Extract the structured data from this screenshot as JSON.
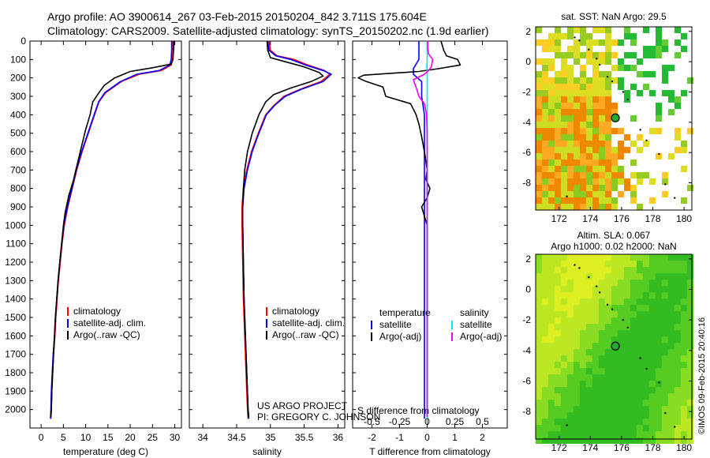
{
  "header": {
    "line1": "Argo profile: AO 3900614_267 03-Feb-2015 20150204_842 3.711S 175.604E",
    "line2": "Climatology: CARS2009. Satellite-adjusted climatology: synTS_20150202.nc (1.9d earlier)"
  },
  "credit": {
    "line1": "US ARGO PROJECT",
    "line2": "PI: GREGORY C. JOHNSON"
  },
  "side_stamp": "©IMOS 09-Feb-2015 20:40:16",
  "colors": {
    "climatology": "#ff0000",
    "satellite": "#0000ff",
    "argo": "#000000",
    "sal_sat": "#00e5ee",
    "sal_argo": "#ee00ee"
  },
  "chart_data": [
    {
      "type": "line",
      "xlabel": "temperature (deg C)",
      "ylabel": "",
      "xlim": [
        -2.5,
        31.5
      ],
      "ylim": [
        2100,
        0
      ],
      "xticks": [
        0,
        5,
        10,
        15,
        20,
        25,
        30
      ],
      "yticks": [
        0,
        100,
        200,
        300,
        400,
        500,
        600,
        700,
        800,
        900,
        1000,
        1100,
        1200,
        1300,
        1400,
        1500,
        1600,
        1700,
        1800,
        1900,
        2000
      ],
      "legend": [
        "climatology",
        "satellite-adj. clim.",
        "Argo(..raw -QC)"
      ],
      "series": [
        {
          "name": "climatology",
          "points": [
            [
              29.6,
              0
            ],
            [
              29.6,
              50
            ],
            [
              29.5,
              100
            ],
            [
              29.2,
              130
            ],
            [
              27,
              160
            ],
            [
              22,
              180
            ],
            [
              18,
              220
            ],
            [
              14.5,
              280
            ],
            [
              13,
              330
            ],
            [
              12,
              400
            ],
            [
              10.6,
              500
            ],
            [
              9.2,
              600
            ],
            [
              8,
              700
            ],
            [
              7,
              800
            ],
            [
              6,
              900
            ],
            [
              5.2,
              1000
            ],
            [
              4.7,
              1100
            ],
            [
              4.3,
              1200
            ],
            [
              3.9,
              1300
            ],
            [
              3.6,
              1400
            ],
            [
              3.3,
              1500
            ],
            [
              3.1,
              1600
            ],
            [
              2.8,
              1700
            ],
            [
              2.6,
              1800
            ],
            [
              2.4,
              1900
            ],
            [
              2.3,
              2000
            ],
            [
              2.2,
              2050
            ]
          ]
        },
        {
          "name": "satellite-adj. clim.",
          "points": [
            [
              29.3,
              0
            ],
            [
              29.3,
              50
            ],
            [
              29.2,
              100
            ],
            [
              28.9,
              130
            ],
            [
              26.5,
              160
            ],
            [
              21.5,
              180
            ],
            [
              17.8,
              220
            ],
            [
              14.3,
              280
            ],
            [
              12.9,
              330
            ],
            [
              11.9,
              400
            ],
            [
              10.5,
              500
            ],
            [
              9.1,
              600
            ],
            [
              7.9,
              700
            ],
            [
              6.9,
              800
            ],
            [
              5.9,
              900
            ],
            [
              5.1,
              1000
            ],
            [
              4.6,
              1100
            ],
            [
              4.2,
              1200
            ],
            [
              3.8,
              1300
            ],
            [
              3.5,
              1400
            ],
            [
              3.2,
              1500
            ],
            [
              3,
              1600
            ],
            [
              2.7,
              1700
            ],
            [
              2.5,
              1800
            ],
            [
              2.3,
              1900
            ],
            [
              2.2,
              2000
            ],
            [
              2.1,
              2050
            ]
          ]
        },
        {
          "name": "Argo(..raw -QC)",
          "points": [
            [
              29.8,
              0
            ],
            [
              29.8,
              30
            ],
            [
              29.7,
              60
            ],
            [
              29.6,
              100
            ],
            [
              29.2,
              125
            ],
            [
              25,
              145
            ],
            [
              20,
              165
            ],
            [
              16.5,
              200
            ],
            [
              14.2,
              240
            ],
            [
              13,
              280
            ],
            [
              11.6,
              330
            ],
            [
              11,
              400
            ],
            [
              10,
              480
            ],
            [
              9,
              580
            ],
            [
              8,
              680
            ],
            [
              7.2,
              760
            ],
            [
              6.2,
              840
            ],
            [
              5.4,
              930
            ],
            [
              5,
              1000
            ],
            [
              4.6,
              1100
            ],
            [
              4.2,
              1200
            ],
            [
              3.8,
              1300
            ],
            [
              3.5,
              1400
            ],
            [
              3.2,
              1500
            ],
            [
              3,
              1600
            ],
            [
              2.8,
              1700
            ],
            [
              2.6,
              1800
            ],
            [
              2.4,
              1900
            ],
            [
              2.3,
              2000
            ],
            [
              2.2,
              2040
            ]
          ]
        }
      ]
    },
    {
      "type": "line",
      "xlabel": "salinity",
      "ylabel": "",
      "xlim": [
        33.8,
        36.1
      ],
      "ylim": [
        2100,
        0
      ],
      "xticks": [
        34,
        34.5,
        35,
        35.5,
        36
      ],
      "yticks": [],
      "legend": [
        "climatology",
        "satellite-adj. clim.",
        "Argo(..raw -QC)"
      ],
      "series": [
        {
          "name": "climatology",
          "points": [
            [
              34.98,
              0
            ],
            [
              35,
              50
            ],
            [
              35.1,
              80
            ],
            [
              35.35,
              100
            ],
            [
              35.55,
              130
            ],
            [
              35.8,
              160
            ],
            [
              35.88,
              180
            ],
            [
              35.75,
              220
            ],
            [
              35.45,
              260
            ],
            [
              35.2,
              300
            ],
            [
              35.05,
              350
            ],
            [
              34.93,
              400
            ],
            [
              34.82,
              500
            ],
            [
              34.72,
              600
            ],
            [
              34.65,
              700
            ],
            [
              34.6,
              800
            ],
            [
              34.58,
              900
            ],
            [
              34.58,
              1000
            ],
            [
              34.59,
              1200
            ],
            [
              34.6,
              1400
            ],
            [
              34.62,
              1600
            ],
            [
              34.64,
              1800
            ],
            [
              34.66,
              2000
            ],
            [
              34.67,
              2050
            ]
          ]
        },
        {
          "name": "satellite-adj. clim.",
          "points": [
            [
              34.96,
              0
            ],
            [
              34.98,
              50
            ],
            [
              35.08,
              80
            ],
            [
              35.3,
              100
            ],
            [
              35.52,
              130
            ],
            [
              35.78,
              160
            ],
            [
              35.9,
              180
            ],
            [
              35.78,
              220
            ],
            [
              35.47,
              260
            ],
            [
              35.22,
              300
            ],
            [
              35.06,
              350
            ],
            [
              34.94,
              400
            ],
            [
              34.83,
              500
            ],
            [
              34.73,
              600
            ],
            [
              34.66,
              700
            ],
            [
              34.61,
              800
            ],
            [
              34.59,
              900
            ],
            [
              34.59,
              1000
            ],
            [
              34.6,
              1200
            ],
            [
              34.61,
              1400
            ],
            [
              34.63,
              1600
            ],
            [
              34.65,
              1800
            ],
            [
              34.67,
              2000
            ],
            [
              34.68,
              2050
            ]
          ]
        },
        {
          "name": "Argo(..raw -QC)",
          "points": [
            [
              34.95,
              0
            ],
            [
              34.96,
              50
            ],
            [
              35,
              90
            ],
            [
              35.2,
              110
            ],
            [
              35.5,
              140
            ],
            [
              35.72,
              170
            ],
            [
              35.78,
              190
            ],
            [
              35.6,
              220
            ],
            [
              35.3,
              255
            ],
            [
              35.05,
              290
            ],
            [
              34.93,
              330
            ],
            [
              34.83,
              400
            ],
            [
              34.73,
              500
            ],
            [
              34.66,
              600
            ],
            [
              34.62,
              700
            ],
            [
              34.6,
              800
            ],
            [
              34.59,
              900
            ],
            [
              34.59,
              1000
            ],
            [
              34.6,
              1200
            ],
            [
              34.61,
              1400
            ],
            [
              34.63,
              1600
            ],
            [
              34.65,
              1800
            ],
            [
              34.67,
              2000
            ],
            [
              34.68,
              2040
            ]
          ]
        }
      ]
    },
    {
      "type": "line",
      "xlabel": "T difference from climatology",
      "title": "S difference from climatology",
      "xlim": [
        -2.7,
        2.9
      ],
      "ylim": [
        2100,
        0
      ],
      "xticks": [
        -2,
        -1,
        0,
        1,
        2
      ],
      "xtick_labels": [
        "-2",
        "-1",
        "0",
        "1",
        "2"
      ],
      "xticks_top": [
        -0.5,
        -0.25,
        0,
        0.25,
        0.5
      ],
      "yticks": [],
      "legend": [
        "temperature",
        "satellite",
        "Argo(-adj)",
        "salinity",
        "satellite",
        "Argo(-adj)"
      ],
      "series": [
        {
          "name": "satellite",
          "points": [
            [
              -0.3,
              0
            ],
            [
              -0.3,
              50
            ],
            [
              -0.3,
              100
            ],
            [
              -0.5,
              150
            ],
            [
              -0.5,
              180
            ],
            [
              -0.2,
              220
            ],
            [
              -0.2,
              300
            ],
            [
              -0.1,
              400
            ],
            [
              -0.1,
              500
            ],
            [
              -0.1,
              600
            ],
            [
              -0.1,
              800
            ],
            [
              -0.1,
              1000
            ],
            [
              -0.1,
              1500
            ],
            [
              -0.1,
              2050
            ]
          ]
        },
        {
          "name": "Argo(-adj)",
          "points": [
            [
              0.5,
              0
            ],
            [
              0.6,
              50
            ],
            [
              0.7,
              80
            ],
            [
              1.1,
              100
            ],
            [
              1.2,
              130
            ],
            [
              0.4,
              150
            ],
            [
              -0.3,
              165
            ],
            [
              -2.3,
              185
            ],
            [
              -2.5,
              200
            ],
            [
              -2.2,
              220
            ],
            [
              -1.6,
              250
            ],
            [
              -1.5,
              300
            ],
            [
              -0.6,
              340
            ],
            [
              -0.4,
              400
            ],
            [
              -0.3,
              450
            ],
            [
              -0.2,
              520
            ],
            [
              -0.1,
              600
            ],
            [
              0,
              700
            ],
            [
              -0.05,
              750
            ],
            [
              0.1,
              800
            ],
            [
              0,
              850
            ],
            [
              -0.2,
              900
            ],
            [
              0,
              1000
            ],
            [
              0,
              1100
            ],
            [
              0,
              1200
            ],
            [
              0,
              1300
            ],
            [
              0,
              2040
            ]
          ]
        },
        {
          "name": "satellite",
          "points": [
            [
              0,
              0
            ],
            [
              0,
              30
            ],
            [
              0,
              60
            ],
            [
              0,
              100
            ],
            [
              -0.01,
              140
            ],
            [
              0,
              180
            ],
            [
              0,
              300
            ],
            [
              0,
              600
            ],
            [
              0,
              1000
            ],
            [
              0,
              1400
            ],
            [
              0,
              2050
            ]
          ]
        },
        {
          "name": "Argo(-adj)",
          "points": [
            [
              0.02,
              0
            ],
            [
              0.02,
              40
            ],
            [
              0.05,
              70
            ],
            [
              0.2,
              100
            ],
            [
              0.15,
              140
            ],
            [
              0.05,
              160
            ],
            [
              -0.1,
              180
            ],
            [
              -0.5,
              210
            ],
            [
              -0.38,
              260
            ],
            [
              -0.3,
              300
            ],
            [
              -0.1,
              340
            ],
            [
              -0.02,
              400
            ],
            [
              0,
              500
            ],
            [
              0,
              2040
            ]
          ]
        }
      ]
    },
    {
      "type": "heatmap",
      "title": "sat. SST: NaN Argo: 29.5",
      "xlim": [
        170.5,
        180.5
      ],
      "ylim": [
        -9.8,
        2.3
      ],
      "xticks": [
        172,
        174,
        176,
        178,
        180
      ],
      "yticks": [
        -8,
        -6,
        -4,
        -2,
        0,
        2
      ],
      "marker": [
        175.604,
        -3.711
      ]
    },
    {
      "type": "heatmap",
      "title": "Altim. SLA: 0.067",
      "subtitle": "Argo h1000: 0.02 h2000: NaN",
      "xlim": [
        170.5,
        180.5
      ],
      "ylim": [
        -9.8,
        2.3
      ],
      "xticks": [
        172,
        174,
        176,
        178,
        180
      ],
      "yticks": [
        -8,
        -6,
        -4,
        -2,
        0,
        2
      ],
      "marker": [
        175.604,
        -3.711
      ]
    }
  ]
}
